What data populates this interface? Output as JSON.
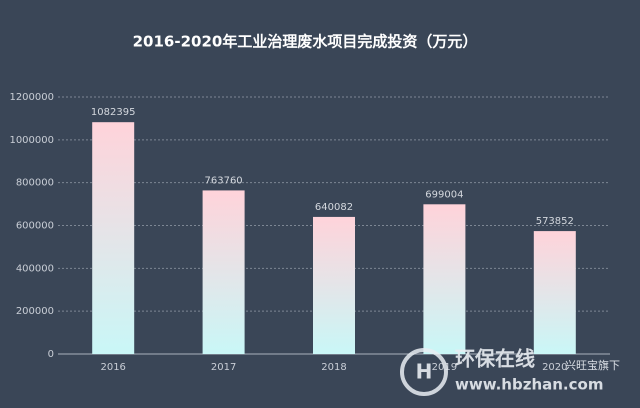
{
  "chart_data": {
    "type": "bar",
    "title": "2016-2020年工业治理废水项目完成投资（万元）",
    "categories": [
      "2016",
      "2017",
      "2018",
      "2019",
      "2020"
    ],
    "values": [
      1082395,
      763760,
      640082,
      699004,
      573852
    ],
    "gradient": [
      "#ffd3da",
      "#c9f7f7"
    ],
    "ylim": [
      0,
      1200000
    ],
    "yticks": [
      0,
      200000,
      400000,
      600000,
      800000,
      1000000,
      1200000
    ],
    "grid": true
  },
  "watermark": {
    "brand": "环保在线",
    "url": "www.hbzhan.com",
    "note": "兴旺宝旗下"
  }
}
